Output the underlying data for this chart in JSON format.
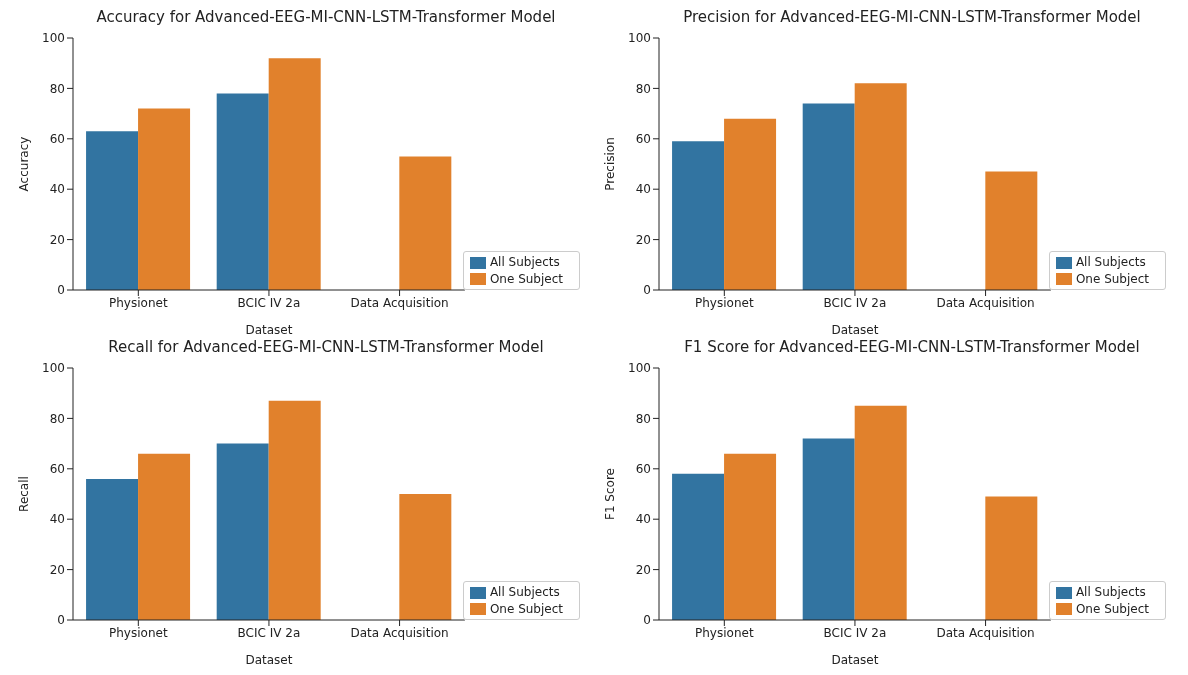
{
  "chart_data": [
    {
      "type": "bar",
      "title": "Accuracy for Advanced-EEG-MI-CNN-LSTM-Transformer Model",
      "xlabel": "Dataset",
      "ylabel": "Accuracy",
      "categories": [
        "Physionet",
        "BCIC IV 2a",
        "Data Acquisition"
      ],
      "series": [
        {
          "name": "All Subjects",
          "color": "#3274a1",
          "values": [
            63,
            78,
            null
          ]
        },
        {
          "name": "One Subject",
          "color": "#e1812c",
          "values": [
            72,
            92,
            53
          ]
        }
      ],
      "ylim": [
        0,
        100
      ],
      "yticks": [
        0,
        20,
        40,
        60,
        80,
        100
      ],
      "legend": "bottom right"
    },
    {
      "type": "bar",
      "title": "Precision for Advanced-EEG-MI-CNN-LSTM-Transformer Model",
      "xlabel": "Dataset",
      "ylabel": "Precision",
      "categories": [
        "Physionet",
        "BCIC IV 2a",
        "Data Acquisition"
      ],
      "series": [
        {
          "name": "All Subjects",
          "color": "#3274a1",
          "values": [
            59,
            74,
            null
          ]
        },
        {
          "name": "One Subject",
          "color": "#e1812c",
          "values": [
            68,
            82,
            47
          ]
        }
      ],
      "ylim": [
        0,
        100
      ],
      "yticks": [
        0,
        20,
        40,
        60,
        80,
        100
      ],
      "legend": "bottom right"
    },
    {
      "type": "bar",
      "title": "Recall for Advanced-EEG-MI-CNN-LSTM-Transformer Model",
      "xlabel": "Dataset",
      "ylabel": "Recall",
      "categories": [
        "Physionet",
        "BCIC IV 2a",
        "Data Acquisition"
      ],
      "series": [
        {
          "name": "All Subjects",
          "color": "#3274a1",
          "values": [
            56,
            70,
            null
          ]
        },
        {
          "name": "One Subject",
          "color": "#e1812c",
          "values": [
            66,
            87,
            50
          ]
        }
      ],
      "ylim": [
        0,
        100
      ],
      "yticks": [
        0,
        20,
        40,
        60,
        80,
        100
      ],
      "legend": "bottom right"
    },
    {
      "type": "bar",
      "title": "F1 Score for Advanced-EEG-MI-CNN-LSTM-Transformer Model",
      "xlabel": "Dataset",
      "ylabel": "F1 Score",
      "categories": [
        "Physionet",
        "BCIC IV 2a",
        "Data Acquisition"
      ],
      "series": [
        {
          "name": "All Subjects",
          "color": "#3274a1",
          "values": [
            58,
            72,
            null
          ]
        },
        {
          "name": "One Subject",
          "color": "#e1812c",
          "values": [
            66,
            85,
            49
          ]
        }
      ],
      "ylim": [
        0,
        100
      ],
      "yticks": [
        0,
        20,
        40,
        60,
        80,
        100
      ],
      "legend": "bottom right"
    }
  ]
}
